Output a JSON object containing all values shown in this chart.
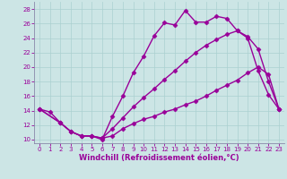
{
  "xlabel": "Windchill (Refroidissement éolien,°C)",
  "bg_color": "#cce5e5",
  "line_color": "#990099",
  "grid_color": "#aad0d0",
  "xlim": [
    -0.5,
    23.5
  ],
  "ylim": [
    9.5,
    29.0
  ],
  "xticks": [
    0,
    1,
    2,
    3,
    4,
    5,
    6,
    7,
    8,
    9,
    10,
    11,
    12,
    13,
    14,
    15,
    16,
    17,
    18,
    19,
    20,
    21,
    22,
    23
  ],
  "yticks": [
    10,
    12,
    14,
    16,
    18,
    20,
    22,
    24,
    26,
    28
  ],
  "line1_x": [
    0,
    1,
    2,
    3,
    4,
    5,
    6,
    7,
    8,
    9,
    10,
    11,
    12,
    13,
    14,
    15,
    16,
    17,
    18,
    19,
    20,
    21,
    22,
    23
  ],
  "line1_y": [
    14.2,
    13.8,
    12.3,
    11.1,
    10.5,
    10.5,
    10.0,
    13.2,
    16.0,
    19.2,
    21.5,
    24.3,
    26.1,
    25.8,
    27.8,
    26.2,
    26.2,
    27.0,
    26.7,
    25.0,
    24.0,
    19.5,
    16.2,
    14.2
  ],
  "line2_x": [
    0,
    2,
    3,
    4,
    5,
    6,
    7,
    8,
    9,
    10,
    11,
    12,
    13,
    14,
    15,
    16,
    17,
    18,
    19,
    20,
    21,
    22,
    23
  ],
  "line2_y": [
    14.2,
    12.3,
    11.1,
    10.5,
    10.5,
    10.2,
    11.5,
    13.0,
    14.5,
    15.8,
    17.0,
    18.3,
    19.5,
    20.8,
    22.0,
    23.0,
    23.8,
    24.5,
    25.0,
    24.2,
    22.5,
    18.0,
    14.2
  ],
  "line3_x": [
    0,
    2,
    3,
    4,
    5,
    6,
    7,
    8,
    9,
    10,
    11,
    12,
    13,
    14,
    15,
    16,
    17,
    18,
    19,
    20,
    21,
    22,
    23
  ],
  "line3_y": [
    14.2,
    12.3,
    11.1,
    10.5,
    10.5,
    10.2,
    10.5,
    11.5,
    12.2,
    12.8,
    13.2,
    13.8,
    14.2,
    14.8,
    15.3,
    16.0,
    16.8,
    17.5,
    18.2,
    19.2,
    20.0,
    19.0,
    14.2
  ],
  "marker": "D",
  "markersize": 2.5,
  "linewidth": 1.0,
  "tick_fontsize": 5.0,
  "label_fontsize": 6.0
}
